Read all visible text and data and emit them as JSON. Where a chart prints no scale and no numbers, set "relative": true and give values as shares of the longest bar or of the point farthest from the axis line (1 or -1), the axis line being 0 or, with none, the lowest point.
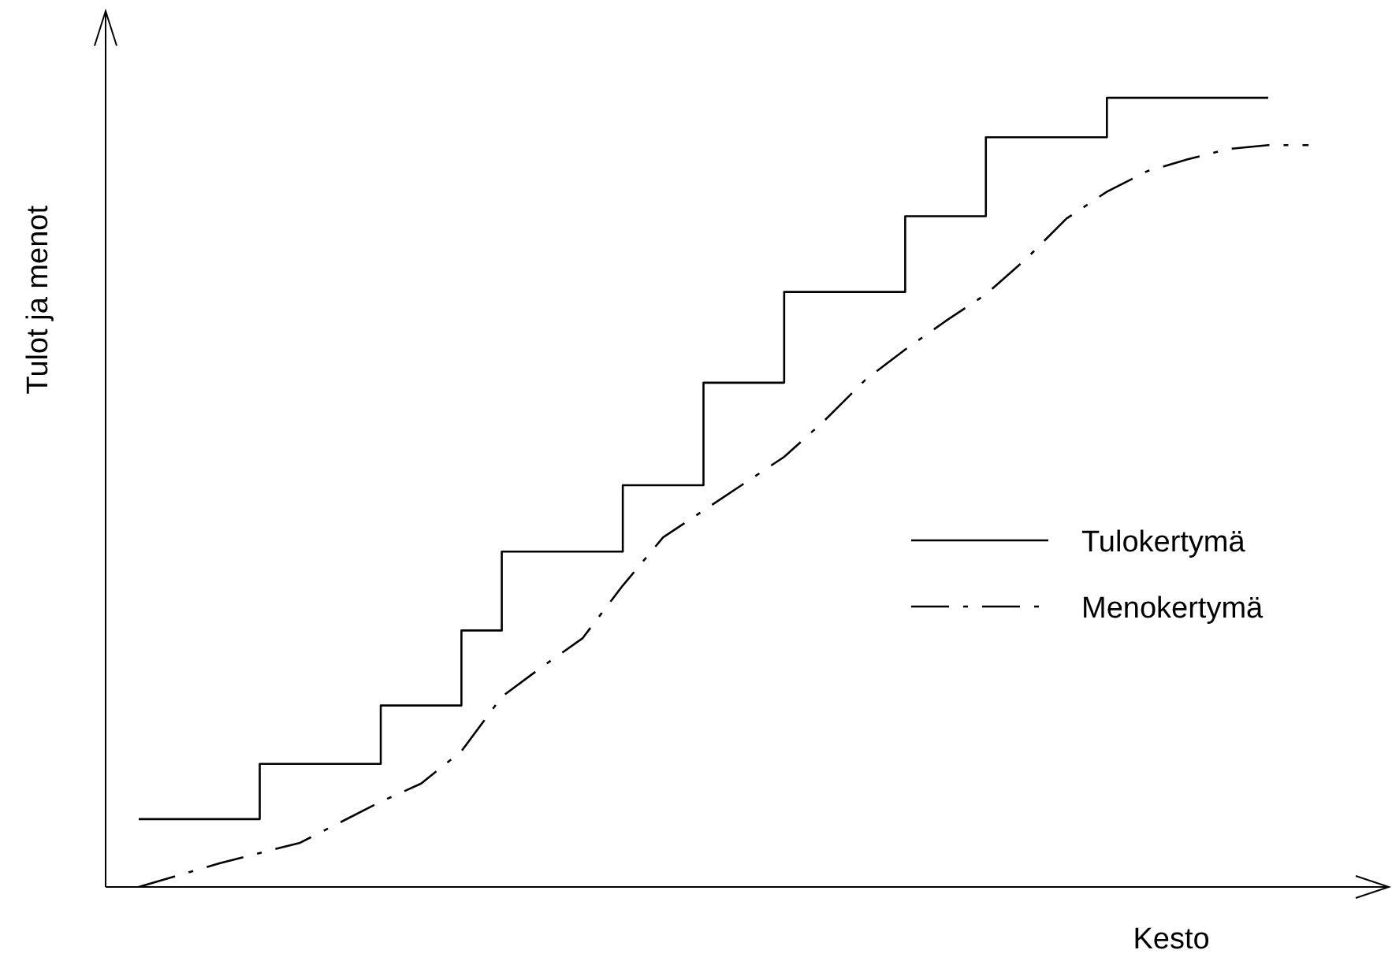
{
  "chart_data": {
    "type": "line",
    "relative": true,
    "xlabel": "Kesto",
    "ylabel": "Tulot ja menot",
    "legend": "right",
    "marker": "none",
    "categories": [
      null,
      null,
      null,
      null,
      null,
      null,
      null,
      null,
      null,
      null,
      null,
      null,
      null,
      null,
      null,
      null,
      null,
      null,
      null,
      null,
      null,
      null,
      null,
      null,
      null,
      null,
      null,
      null,
      null,
      null
    ],
    "series": [
      {
        "name": "Tulokertymä",
        "type": "step",
        "color": "#000000",
        "line_style": "solid",
        "values": [
          0.086,
          0.086,
          0.086,
          0.156,
          0.156,
          0.156,
          0.23,
          0.23,
          0.325,
          0.425,
          0.425,
          0.425,
          0.509,
          0.509,
          0.639,
          0.639,
          0.754,
          0.754,
          0.754,
          0.85,
          0.85,
          0.95,
          0.95,
          0.95,
          1,
          1,
          1,
          1,
          1,
          null
        ]
      },
      {
        "name": "Menokertymä",
        "type": "line",
        "color": "#000000",
        "line_style": "dashed",
        "values": [
          0,
          0.015,
          0.03,
          0.043,
          0.056,
          0.082,
          0.108,
          0.131,
          0.172,
          0.241,
          0.279,
          0.315,
          0.382,
          0.443,
          0.477,
          0.511,
          0.545,
          0.591,
          0.642,
          0.681,
          0.717,
          0.751,
          0.796,
          0.847,
          0.881,
          0.907,
          0.922,
          0.935,
          0.94,
          0.94
        ]
      }
    ]
  }
}
